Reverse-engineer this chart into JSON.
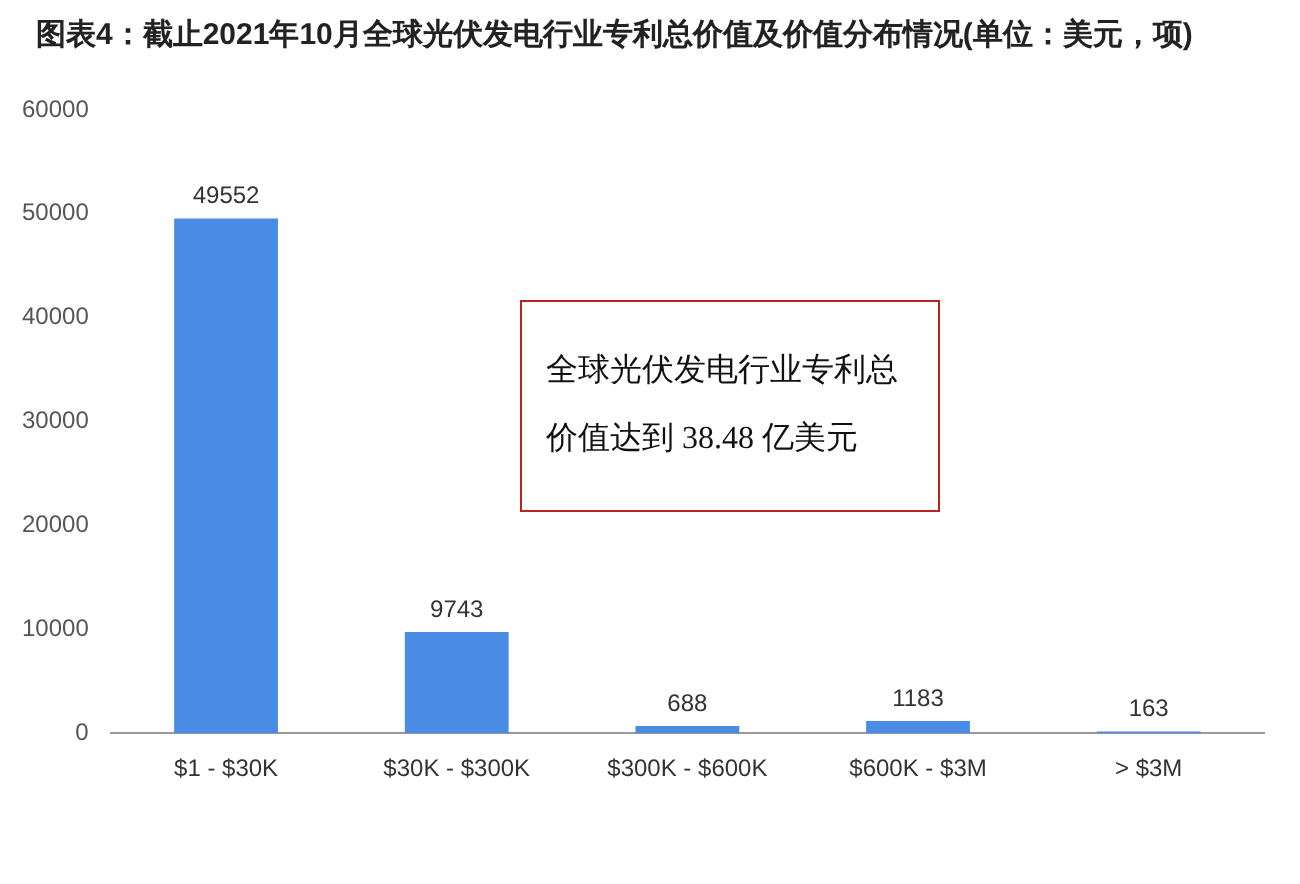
{
  "chart_data": {
    "type": "bar",
    "title": "图表4：截止2021年10月全球光伏发电行业专利总价值及价值分布情况(单位：美元，项)",
    "categories": [
      "$1 - $30K",
      "$30K - $300K",
      "$300K - $600K",
      "$600K - $3M",
      "> $3M"
    ],
    "values": [
      49552,
      9743,
      688,
      1183,
      163
    ],
    "color": "#4a8be6",
    "ylim": [
      0,
      60000
    ],
    "yticks": [
      0,
      10000,
      20000,
      30000,
      40000,
      50000,
      60000
    ],
    "grid": false,
    "data_labels": true,
    "legend": false,
    "annotations": [
      "全球光伏发电行业专利总价值达到 38.48 亿美元"
    ]
  }
}
